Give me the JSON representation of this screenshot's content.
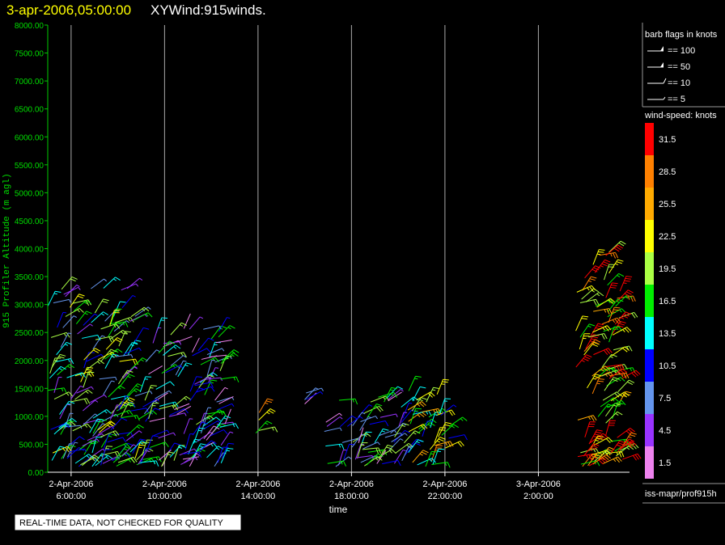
{
  "header": {
    "timestamp": "3-apr-2006,05:00:00",
    "title": "XYWind:915winds."
  },
  "footer": {
    "disclaimer": "REAL-TIME DATA, NOT CHECKED FOR QUALITY",
    "source": "iss-mapr/prof915h"
  },
  "legend": {
    "barb_title": "barb flags in knots",
    "barb_items": [
      {
        "label": "== 100",
        "kind": "pennant"
      },
      {
        "label": "== 50",
        "kind": "flag"
      },
      {
        "label": "== 10",
        "kind": "full"
      },
      {
        "label": "== 5",
        "kind": "half"
      }
    ],
    "speed_title": "wind-speed: knots",
    "speed_bins": [
      {
        "label": "31.5",
        "color": "#ff0000"
      },
      {
        "label": "28.5",
        "color": "#ff8000"
      },
      {
        "label": "25.5",
        "color": "#ffaa00"
      },
      {
        "label": "22.5",
        "color": "#ffff00"
      },
      {
        "label": "19.5",
        "color": "#aaff44"
      },
      {
        "label": "16.5",
        "color": "#00ee00"
      },
      {
        "label": "13.5",
        "color": "#00ffff"
      },
      {
        "label": "10.5",
        "color": "#0000ff"
      },
      {
        "label": "7.5",
        "color": "#6495ed"
      },
      {
        "label": "4.5",
        "color": "#9933ff"
      },
      {
        "label": "1.5",
        "color": "#ee82ee"
      }
    ]
  },
  "chart_data": {
    "type": "scatter",
    "title": "XYWind:915winds.",
    "ylabel": "915 Profiler Altitude (m agl)",
    "xlabel": "time",
    "ylim": [
      0,
      8000
    ],
    "yticks": [
      "0.00",
      "500.00",
      "1000.00",
      "1500.00",
      "2000.00",
      "2500.00",
      "3000.00",
      "3500.00",
      "4000.00",
      "4500.00",
      "5000.00",
      "5500.00",
      "6000.00",
      "6500.00",
      "7000.00",
      "7500.00",
      "8000.00"
    ],
    "xticks": [
      {
        "date": "2-Apr-2006",
        "time": "6:00:00"
      },
      {
        "date": "2-Apr-2006",
        "time": "10:00:00"
      },
      {
        "date": "2-Apr-2006",
        "time": "14:00:00"
      },
      {
        "date": "2-Apr-2006",
        "time": "18:00:00"
      },
      {
        "date": "2-Apr-2006",
        "time": "22:00:00"
      },
      {
        "date": "3-Apr-2006",
        "time": "2:00:00"
      }
    ],
    "xlim_hours": [
      5.0,
      29.9
    ],
    "grid": "vertical",
    "wind_barb_groups": [
      {
        "hours": [
          5.0,
          8.8
        ],
        "alt_range": [
          100,
          3300
        ],
        "typical_speed_kt": 13
      },
      {
        "hours": [
          8.8,
          12.6
        ],
        "alt_range": [
          100,
          2600
        ],
        "typical_speed_kt": 10
      },
      {
        "hours": [
          13.9,
          14.2
        ],
        "alt_range": [
          700,
          1100
        ],
        "typical_speed_kt": 19
      },
      {
        "hours": [
          15.7,
          16.1
        ],
        "alt_range": [
          1200,
          1600
        ],
        "typical_speed_kt": 5
      },
      {
        "hours": [
          16.8,
          20.4
        ],
        "alt_range": [
          100,
          1400
        ],
        "typical_speed_kt": 11
      },
      {
        "hours": [
          20.4,
          22.3
        ],
        "alt_range": [
          100,
          1500
        ],
        "typical_speed_kt": 18
      },
      {
        "hours": [
          27.6,
          29.6
        ],
        "alt_range": [
          100,
          4000
        ],
        "typical_speed_kt": 25
      }
    ]
  }
}
